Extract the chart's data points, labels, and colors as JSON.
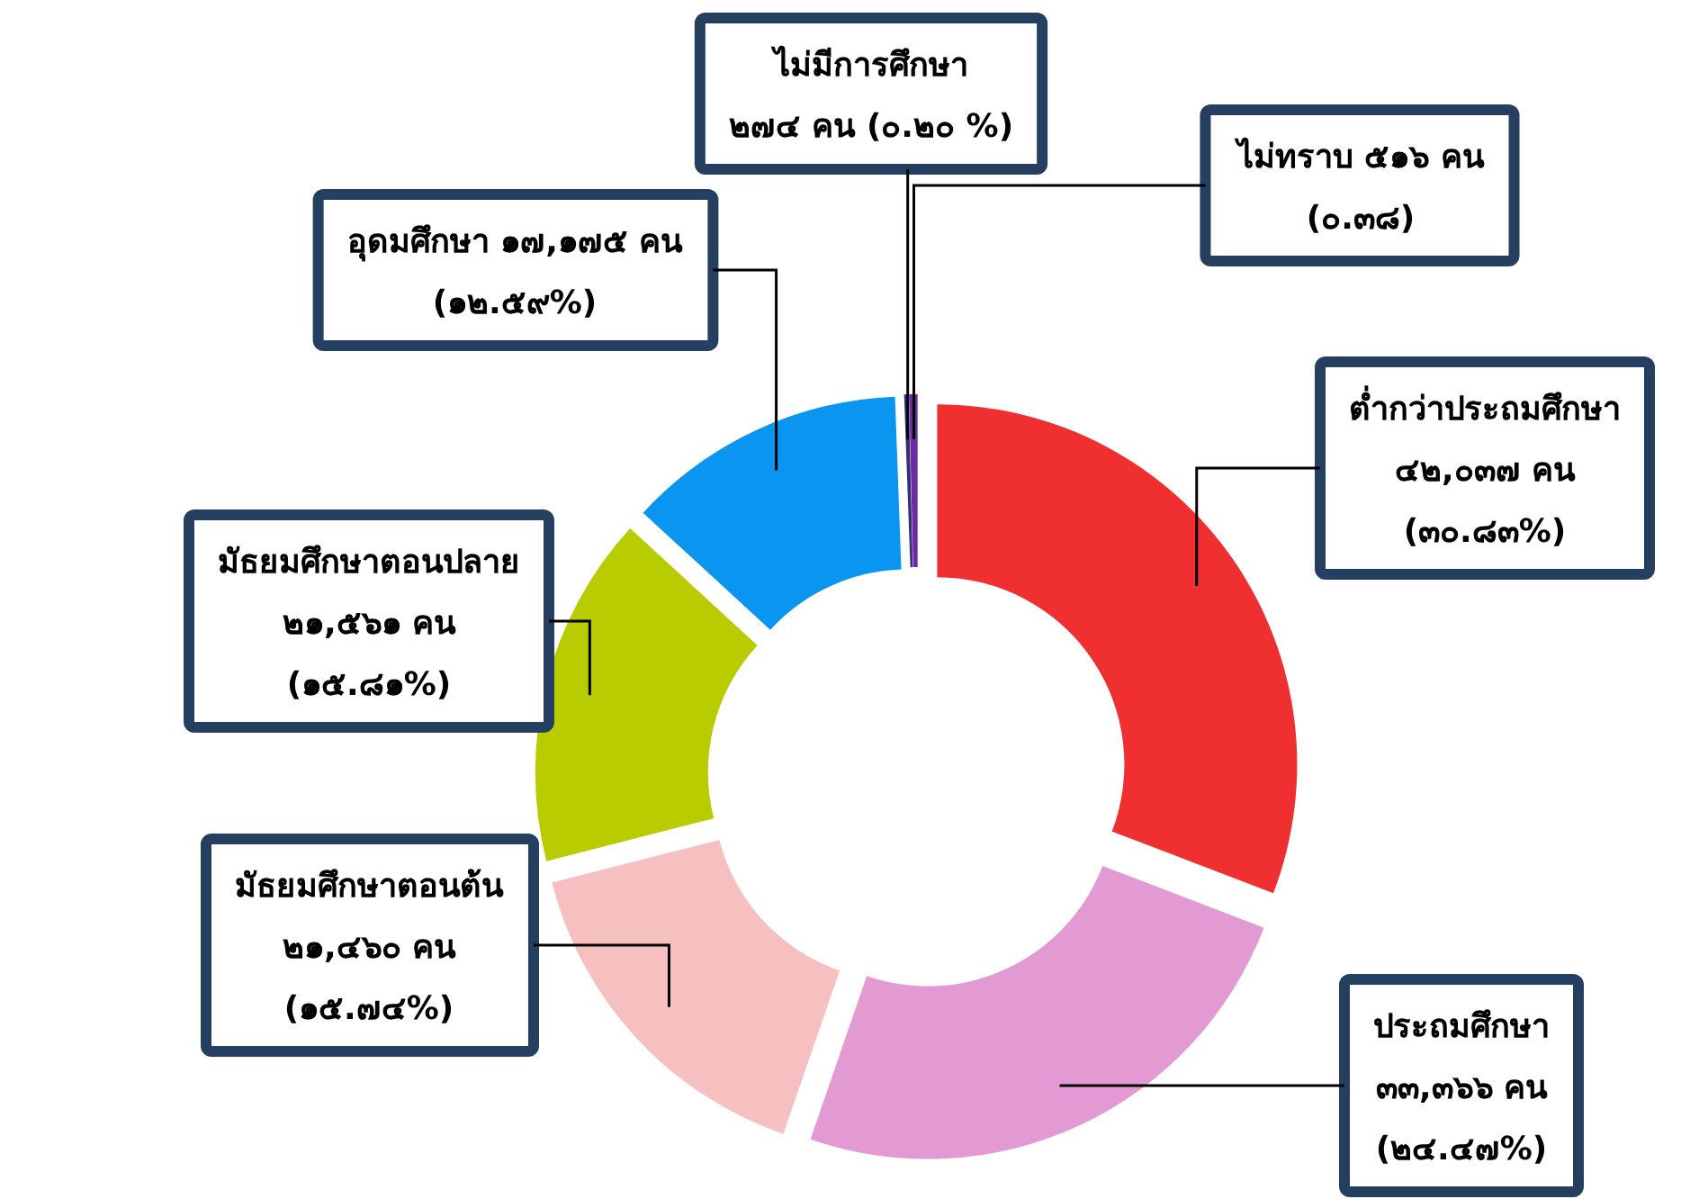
{
  "chart_data": {
    "type": "donut",
    "categories": [
      "ต่ำกว่าประถมศึกษา",
      "ประถมศึกษา",
      "มัธยมศึกษาตอนต้น",
      "มัธยมศึกษาตอนปลาย",
      "อุดมศึกษา",
      "ไม่มีการศึกษา",
      "ไม่ทราบ"
    ],
    "values": [
      42037,
      33366,
      21460,
      21561,
      17175,
      274,
      516
    ],
    "value_labels": [
      "\n๔๒,๐๓๗ คน\n(๓๐.๘๓%)",
      "\n๓๓,๓๖๖ คน\n(๒๔.๔๗%)",
      "\n๒๑,๔๖๐ คน\n(๑๕.๗๔%)",
      "\n๒๑,๕๖๑ คน\n(๑๕.๘๑%)",
      " ๑๗,๑๗๕ คน\n(๑๒.๕๙%)",
      "\n๒๗๔ คน (๐.๒๐ %)",
      " ๕๑๖ คน\n(๐.๓๘)"
    ],
    "colors": [
      "#f03030",
      "#e39ad2",
      "#f7c0c0",
      "#b8cc00",
      "#0a96f0",
      "#3a2a7a",
      "#6a2ca0"
    ]
  }
}
